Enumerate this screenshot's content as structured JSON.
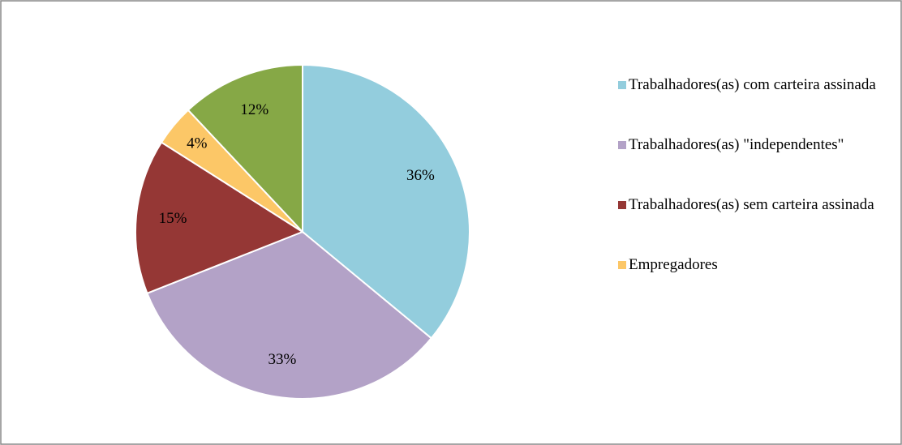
{
  "chart_data": {
    "type": "pie",
    "categories": [
      "Trabalhadores(as) com carteira assinada",
      "Trabalhadores(as) \"independentes\"",
      "Trabalhadores(as) sem carteira assinada",
      "Empregadores",
      null
    ],
    "values": [
      36,
      33,
      15,
      4,
      12
    ],
    "value_labels": [
      "36%",
      "33%",
      "15%",
      "4%",
      "12%"
    ],
    "colors": [
      "#93cddd",
      "#b3a2c7",
      "#953735",
      "#fcc767",
      "#86a846"
    ],
    "legend": "right"
  }
}
